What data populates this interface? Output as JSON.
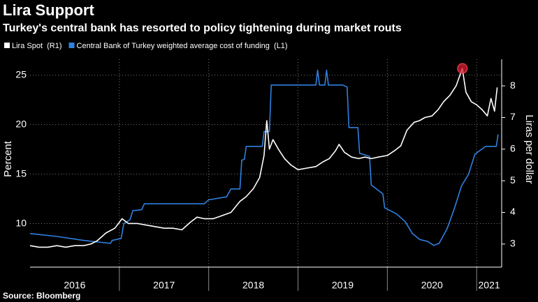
{
  "chart_data": {
    "type": "line",
    "title": "Lira Support",
    "subtitle": "Turkey's central bank has resorted to policy tightening during market routs",
    "ylabel": "Percent",
    "y2label": "Liras per dollar",
    "source": "Source: Bloomberg",
    "year_labels": [
      "2016",
      "2017",
      "2018",
      "2019",
      "2020",
      "2021"
    ],
    "xlim": [
      2016.0,
      2021.28
    ],
    "xticks": [
      2017,
      2018,
      2019,
      2020,
      2021
    ],
    "ylim": [
      5.6,
      26.6
    ],
    "yticks": [
      10,
      15,
      20,
      25
    ],
    "y2lim": [
      2.27,
      8.84
    ],
    "y2ticks": [
      3,
      4,
      5,
      6,
      7,
      8
    ],
    "grid": true,
    "series": [
      {
        "name": "Lira Spot  (R1)",
        "color": "#ffffff",
        "axis": "y2",
        "x": [
          2016.0,
          2016.1,
          2016.2,
          2016.3,
          2016.4,
          2016.5,
          2016.6,
          2016.68,
          2016.75,
          2016.85,
          2016.95,
          2017.03,
          2017.1,
          2017.2,
          2017.3,
          2017.4,
          2017.5,
          2017.6,
          2017.7,
          2017.8,
          2017.87,
          2017.95,
          2018.05,
          2018.15,
          2018.25,
          2018.35,
          2018.42,
          2018.5,
          2018.57,
          2018.62,
          2018.65,
          2018.68,
          2018.72,
          2018.78,
          2018.85,
          2018.92,
          2019.0,
          2019.1,
          2019.2,
          2019.28,
          2019.35,
          2019.42,
          2019.46,
          2019.52,
          2019.6,
          2019.68,
          2019.75,
          2019.82,
          2019.9,
          2020.0,
          2020.08,
          2020.15,
          2020.22,
          2020.3,
          2020.36,
          2020.42,
          2020.5,
          2020.57,
          2020.63,
          2020.7,
          2020.77,
          2020.84,
          2020.88,
          2020.94,
          2021.0,
          2021.06,
          2021.12,
          2021.16,
          2021.2,
          2021.23
        ],
        "values": [
          2.95,
          2.9,
          2.9,
          2.95,
          2.9,
          2.95,
          2.95,
          3.0,
          3.1,
          3.35,
          3.5,
          3.8,
          3.65,
          3.65,
          3.6,
          3.55,
          3.5,
          3.5,
          3.45,
          3.7,
          3.85,
          3.8,
          3.8,
          3.9,
          4.0,
          4.35,
          4.5,
          4.75,
          5.1,
          5.8,
          6.9,
          6.0,
          6.3,
          6.0,
          5.7,
          5.5,
          5.35,
          5.4,
          5.45,
          5.6,
          5.7,
          5.95,
          6.15,
          5.9,
          5.75,
          5.7,
          5.75,
          5.7,
          5.75,
          5.8,
          5.95,
          6.1,
          6.6,
          6.85,
          6.9,
          7.0,
          7.05,
          7.25,
          7.5,
          7.7,
          8.0,
          8.55,
          7.8,
          7.5,
          7.4,
          7.25,
          7.05,
          7.6,
          7.2,
          7.95
        ]
      },
      {
        "name": "Central Bank of Turkey weighted average cost of funding  (L1)",
        "color": "#2f80e0",
        "axis": "y",
        "x": [
          2016.0,
          2016.3,
          2016.6,
          2016.9,
          2016.92,
          2017.02,
          2017.05,
          2017.12,
          2017.15,
          2017.25,
          2017.28,
          2017.95,
          2018.0,
          2018.2,
          2018.25,
          2018.35,
          2018.37,
          2018.4,
          2018.42,
          2018.6,
          2018.62,
          2018.68,
          2018.7,
          2019.2,
          2019.22,
          2019.24,
          2019.3,
          2019.32,
          2019.34,
          2019.5,
          2019.55,
          2019.57,
          2019.67,
          2019.69,
          2019.8,
          2019.82,
          2019.95,
          2019.97,
          2020.1,
          2020.2,
          2020.28,
          2020.36,
          2020.45,
          2020.52,
          2020.58,
          2020.67,
          2020.75,
          2020.83,
          2020.91,
          2020.98,
          2021.1,
          2021.2,
          2021.22,
          2021.24
        ],
        "values": [
          9.0,
          8.7,
          8.3,
          8.0,
          8.3,
          8.5,
          10.0,
          10.4,
          11.3,
          11.4,
          12.0,
          12.0,
          12.4,
          12.7,
          13.5,
          13.5,
          16.4,
          16.5,
          17.8,
          17.8,
          19.3,
          19.3,
          24.0,
          24.0,
          25.5,
          24.0,
          24.0,
          25.5,
          24.0,
          24.0,
          23.8,
          19.7,
          19.7,
          17.1,
          16.8,
          13.9,
          13.0,
          11.6,
          11.0,
          10.2,
          9.0,
          8.4,
          8.2,
          7.8,
          8.0,
          9.5,
          11.5,
          13.8,
          15.0,
          17.0,
          17.8,
          17.8,
          17.8,
          19.0
        ]
      }
    ]
  }
}
